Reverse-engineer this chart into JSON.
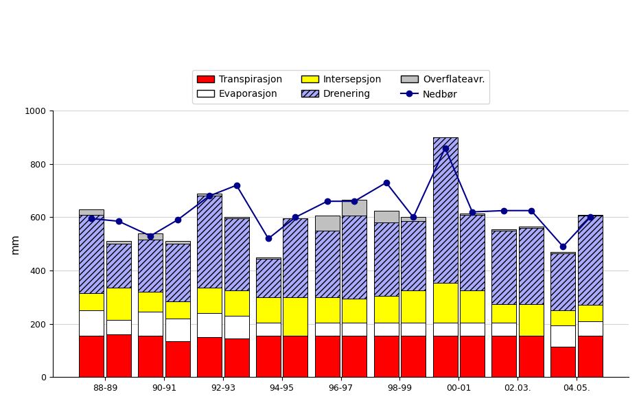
{
  "categories": [
    "88-89",
    "90-91",
    "92-93",
    "94-95",
    "96-97",
    "98-99",
    "00-01",
    "02.03.",
    "04.05."
  ],
  "transpirasjon": [
    155,
    155,
    150,
    155,
    155,
    155,
    155,
    155,
    115
  ],
  "transpirasjon2": [
    160,
    135,
    145,
    155,
    155,
    155,
    155,
    155,
    155
  ],
  "evaporasjon": [
    95,
    90,
    90,
    50,
    50,
    50,
    50,
    50,
    80
  ],
  "evaporasjon2": [
    55,
    85,
    85,
    0,
    50,
    50,
    50,
    0,
    55
  ],
  "intersepsjon": [
    65,
    75,
    95,
    95,
    95,
    100,
    150,
    70,
    55
  ],
  "intersepsjon2": [
    120,
    65,
    95,
    145,
    90,
    120,
    120,
    120,
    60
  ],
  "overflateavr": [
    20,
    25,
    10,
    5,
    55,
    45,
    0,
    5,
    5
  ],
  "overflateavr2": [
    10,
    10,
    5,
    0,
    60,
    15,
    5,
    5,
    5
  ],
  "drenering": [
    295,
    195,
    345,
    145,
    250,
    275,
    545,
    275,
    215
  ],
  "drenering2": [
    165,
    215,
    270,
    295,
    310,
    260,
    285,
    285,
    335
  ],
  "nedbor": [
    595,
    530,
    680,
    520,
    660,
    730,
    860,
    625,
    490
  ],
  "nedbor2": [
    585,
    590,
    720,
    600,
    660,
    600,
    620,
    625,
    600
  ],
  "ylabel": "mm",
  "ylim": [
    0,
    1000
  ],
  "yticks": [
    0,
    200,
    400,
    600,
    800,
    1000
  ],
  "legend_labels": [
    "Transpirasjon",
    "Evaporasjon",
    "Intersepsjon",
    "Drenering",
    "Overflateavr.",
    "Nedbør"
  ],
  "bar_color_transp": "#ff0000",
  "bar_color_evap": "#ffffff",
  "bar_color_inter": "#ffff00",
  "bar_color_dren": "#aaaaff",
  "bar_color_ovfl": "#c0c0c0",
  "line_color": "#00008b",
  "hatch_dren": "////",
  "figsize": [
    9.31,
    5.87
  ],
  "dpi": 100
}
